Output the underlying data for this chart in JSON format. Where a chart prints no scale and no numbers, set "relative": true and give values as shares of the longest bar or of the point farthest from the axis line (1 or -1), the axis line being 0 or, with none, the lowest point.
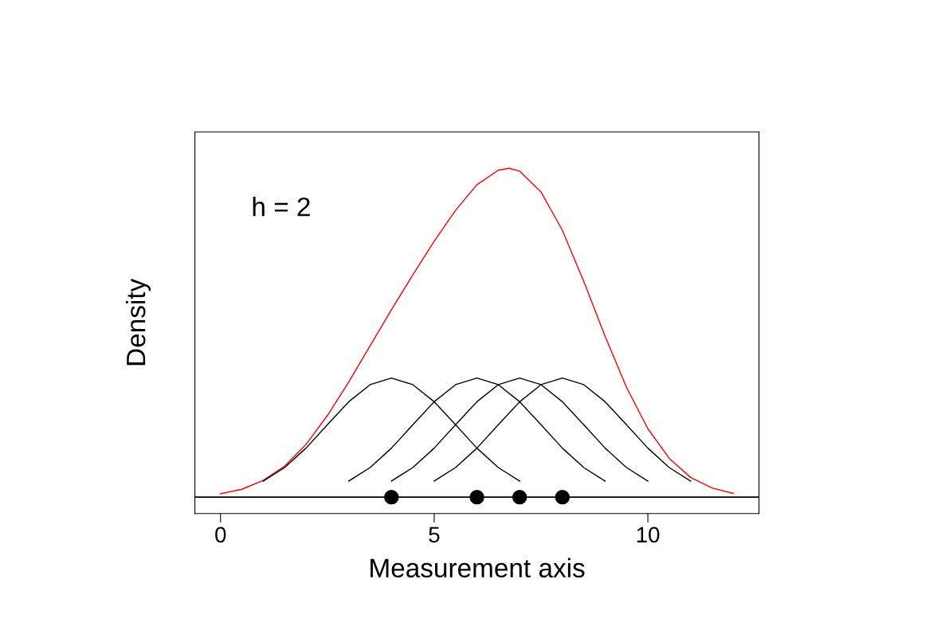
{
  "chart_data": {
    "type": "line",
    "relative": true,
    "xlabel": "Measurement axis",
    "ylabel": "Density",
    "annotations": [
      "h = 2"
    ],
    "xlim": [
      -0.6,
      12.6
    ],
    "xticks": [
      0,
      5,
      10
    ],
    "grid": false,
    "legend": false,
    "line_style": "solid",
    "marker": "none",
    "ref_lines": [
      {
        "axis": "y",
        "value": 0,
        "color": "#000000"
      }
    ],
    "series": [
      {
        "color": "#ff0000",
        "x": [
          0,
          0.5,
          1,
          1.5,
          2,
          2.5,
          3,
          3.5,
          4,
          4.5,
          5,
          5.5,
          6,
          6.5,
          6.75,
          7,
          7.5,
          8,
          8.5,
          9,
          9.5,
          10,
          10.5,
          11,
          11.5,
          12
        ],
        "values": [
          0.01,
          0.024,
          0.051,
          0.094,
          0.16,
          0.248,
          0.35,
          0.46,
          0.57,
          0.676,
          0.778,
          0.872,
          0.95,
          0.994,
          1,
          0.991,
          0.928,
          0.811,
          0.656,
          0.489,
          0.334,
          0.208,
          0.118,
          0.06,
          0.028,
          0.011
        ]
      },
      {
        "color": "#000000",
        "x": [
          1,
          1.5,
          2,
          2.5,
          3,
          3.5,
          4,
          4.5,
          5,
          5.5,
          6,
          6.5,
          7
        ],
        "values": [
          0.049,
          0.09,
          0.149,
          0.22,
          0.29,
          0.342,
          0.362,
          0.342,
          0.29,
          0.22,
          0.149,
          0.09,
          0.049
        ]
      },
      {
        "color": "#000000",
        "x": [
          3,
          3.5,
          4,
          4.5,
          5,
          5.5,
          6,
          6.5,
          7,
          7.5,
          8,
          8.5,
          9
        ],
        "values": [
          0.049,
          0.09,
          0.149,
          0.22,
          0.29,
          0.342,
          0.362,
          0.342,
          0.29,
          0.22,
          0.149,
          0.09,
          0.049
        ]
      },
      {
        "color": "#000000",
        "x": [
          4,
          4.5,
          5,
          5.5,
          6,
          6.5,
          7,
          7.5,
          8,
          8.5,
          9,
          9.5,
          10
        ],
        "values": [
          0.049,
          0.09,
          0.149,
          0.22,
          0.29,
          0.342,
          0.362,
          0.342,
          0.29,
          0.22,
          0.149,
          0.09,
          0.049
        ]
      },
      {
        "color": "#000000",
        "x": [
          5,
          5.5,
          6,
          6.5,
          7,
          7.5,
          8,
          8.5,
          9,
          9.5,
          10,
          10.5,
          11
        ],
        "values": [
          0.049,
          0.09,
          0.149,
          0.22,
          0.29,
          0.342,
          0.362,
          0.342,
          0.29,
          0.22,
          0.149,
          0.09,
          0.049
        ]
      },
      {
        "type": "scatter",
        "marker": "circle",
        "color": "#000000",
        "x": [
          4,
          6,
          7,
          8
        ],
        "values": [
          0,
          0,
          0,
          0
        ]
      }
    ]
  }
}
